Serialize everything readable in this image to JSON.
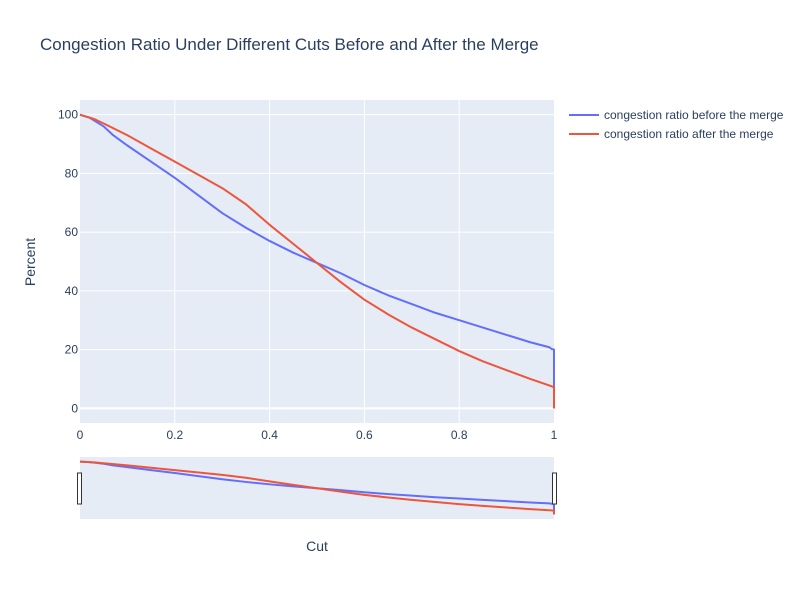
{
  "chart_data": {
    "type": "line",
    "title": "Congestion Ratio Under Different Cuts Before and After the Merge",
    "xlabel": "Cut",
    "ylabel": "Percent",
    "xlim": [
      0,
      1
    ],
    "ylim": [
      -5,
      105
    ],
    "x_ticks": [
      0,
      0.2,
      0.4,
      0.6,
      0.8,
      1
    ],
    "x_tick_labels": [
      "0",
      "0.2",
      "0.4",
      "0.6",
      "0.8",
      "1"
    ],
    "y_ticks": [
      0,
      20,
      40,
      60,
      80,
      100
    ],
    "y_tick_labels": [
      "0",
      "20",
      "40",
      "60",
      "80",
      "100"
    ],
    "grid": true,
    "legend": "right",
    "range_slider": true,
    "series": [
      {
        "name": "congestion ratio before the merge",
        "color": "#636efa",
        "x": [
          0,
          0.01,
          0.02,
          0.03,
          0.05,
          0.07,
          0.1,
          0.15,
          0.2,
          0.25,
          0.3,
          0.35,
          0.4,
          0.45,
          0.5,
          0.55,
          0.6,
          0.65,
          0.7,
          0.75,
          0.8,
          0.85,
          0.9,
          0.95,
          0.99,
          0.995,
          1.0,
          1.0
        ],
        "y": [
          100,
          99.5,
          99,
          98,
          96,
          93,
          89.5,
          84,
          78.5,
          72.5,
          66.5,
          61.5,
          57,
          53,
          49.5,
          46,
          42,
          38.5,
          35.5,
          32.5,
          30,
          27.5,
          25,
          22.5,
          20.8,
          20.2,
          20,
          0
        ]
      },
      {
        "name": "congestion ratio after the merge",
        "color": "#ef553b",
        "x": [
          0,
          0.01,
          0.02,
          0.03,
          0.05,
          0.1,
          0.15,
          0.2,
          0.25,
          0.3,
          0.35,
          0.4,
          0.45,
          0.5,
          0.55,
          0.6,
          0.65,
          0.7,
          0.75,
          0.8,
          0.85,
          0.9,
          0.95,
          0.99,
          0.995,
          1.0,
          1.0
        ],
        "y": [
          100,
          99.5,
          99,
          98.5,
          97,
          93,
          88.5,
          84,
          79.5,
          75,
          69.5,
          62.5,
          56,
          49.5,
          43,
          37,
          32,
          27.5,
          23.5,
          19.5,
          16,
          13,
          10,
          7.8,
          7.5,
          7.2,
          0
        ]
      }
    ]
  }
}
